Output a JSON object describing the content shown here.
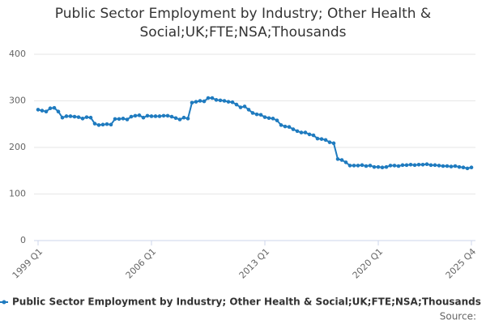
{
  "chart_data": {
    "type": "line",
    "title": "Public Sector Employment by Industry; Other Health & Social;UK;FTE;NSA;Thousands",
    "source_label": "Source:",
    "categories": [
      "1999 Q1",
      null,
      null,
      null,
      null,
      null,
      null,
      null,
      null,
      null,
      null,
      null,
      null,
      null,
      null,
      null,
      null,
      null,
      null,
      null,
      null,
      null,
      null,
      null,
      null,
      null,
      null,
      null,
      "2006 Q1",
      null,
      null,
      null,
      null,
      null,
      null,
      null,
      null,
      null,
      null,
      null,
      null,
      null,
      null,
      null,
      null,
      null,
      null,
      null,
      null,
      null,
      null,
      null,
      null,
      null,
      null,
      null,
      "2013 Q1",
      null,
      null,
      null,
      null,
      null,
      null,
      null,
      null,
      null,
      null,
      null,
      null,
      null,
      null,
      null,
      null,
      null,
      null,
      null,
      null,
      null,
      null,
      null,
      null,
      null,
      null,
      null,
      "2020 Q1",
      null,
      null,
      null,
      null,
      null,
      null,
      null,
      null,
      null,
      null,
      null,
      null,
      null,
      null,
      null,
      null,
      null,
      null,
      null,
      null,
      null,
      null,
      "2025 Q4"
    ],
    "series": [
      {
        "name": "Public Sector Employment by Industry; Other Health & Social;UK;FTE;NSA;Thousands",
        "color": "#1f7bbf",
        "values": [
          281,
          279,
          277,
          284,
          285,
          277,
          264,
          267,
          267,
          266,
          265,
          262,
          265,
          264,
          251,
          248,
          249,
          250,
          249,
          261,
          261,
          262,
          260,
          266,
          268,
          269,
          264,
          268,
          267,
          267,
          267,
          268,
          268,
          266,
          263,
          260,
          264,
          262,
          296,
          298,
          300,
          299,
          306,
          306,
          302,
          301,
          300,
          298,
          297,
          292,
          286,
          288,
          281,
          274,
          271,
          270,
          265,
          263,
          262,
          258,
          248,
          245,
          244,
          239,
          235,
          232,
          232,
          228,
          226,
          219,
          218,
          216,
          211,
          209,
          175,
          173,
          168,
          161,
          161,
          161,
          162,
          160,
          161,
          158,
          158,
          157,
          158,
          161,
          161,
          160,
          162,
          162,
          163,
          162,
          163,
          163,
          164,
          162,
          162,
          161,
          160,
          160,
          159,
          160,
          158,
          157,
          155,
          157
        ]
      }
    ],
    "ylim": [
      0,
      400
    ],
    "yticks": [
      0,
      100,
      200,
      300,
      400
    ],
    "grid": true
  }
}
